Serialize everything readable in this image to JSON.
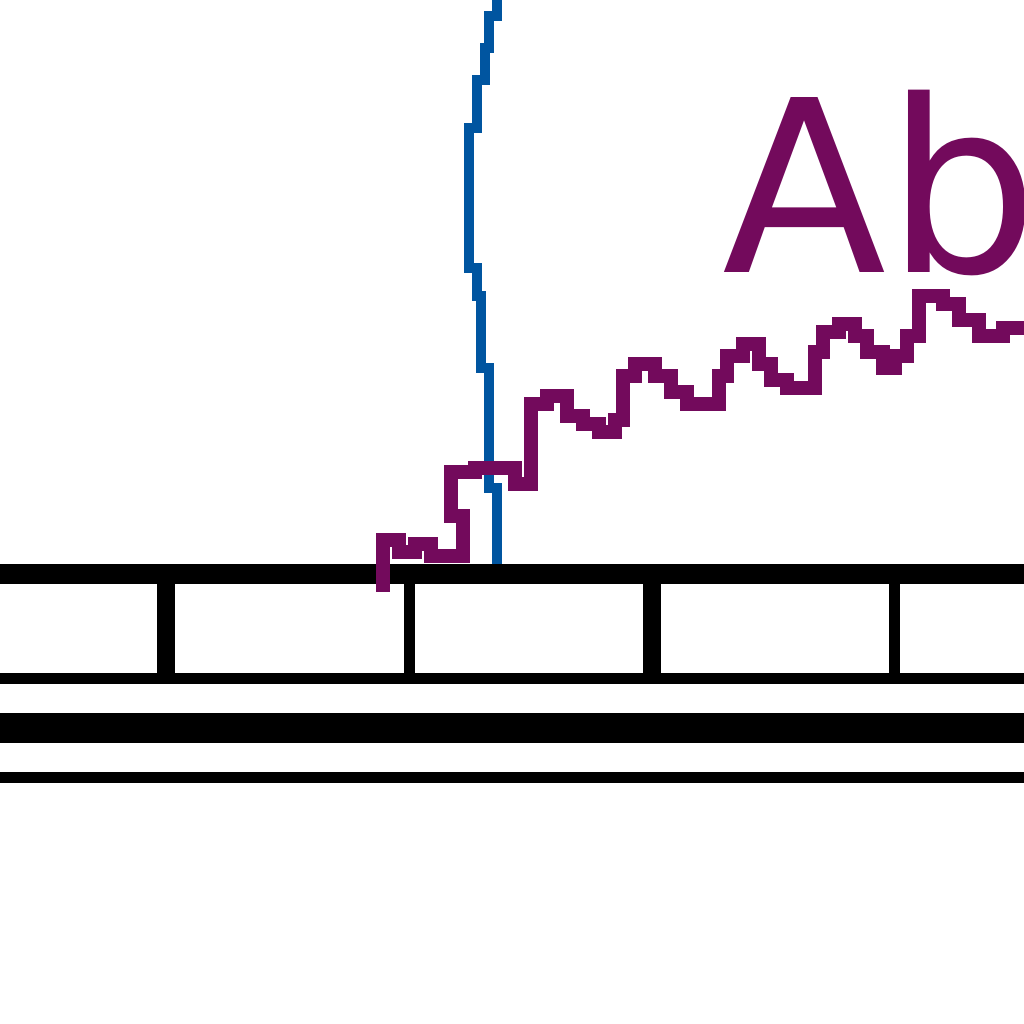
{
  "signature": {
    "text": "Ab"
  },
  "colors": {
    "background": "#ffffff",
    "ink": "#000000",
    "signature": "#730a5c",
    "pen_line": "#0055a0"
  }
}
